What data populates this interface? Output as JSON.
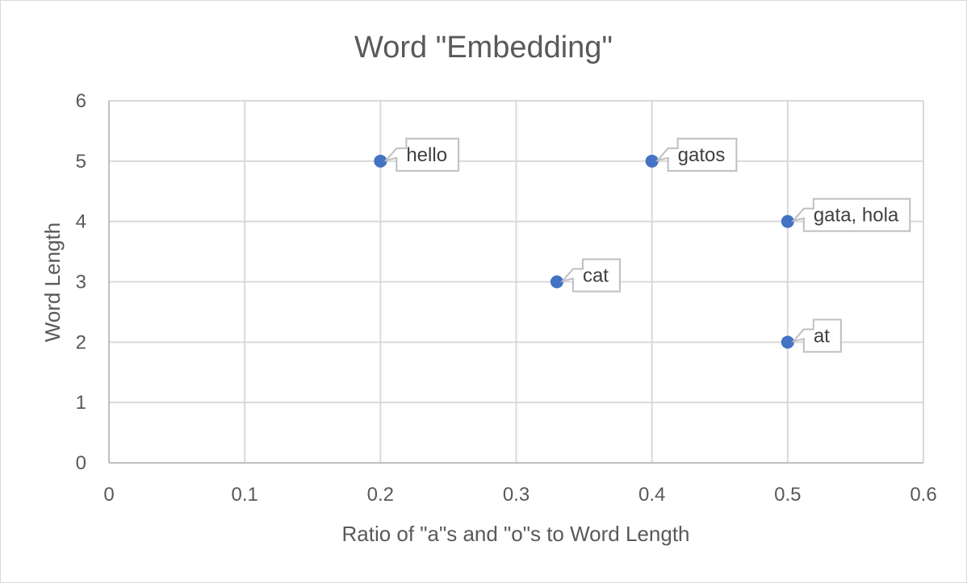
{
  "chart_data": {
    "type": "scatter",
    "title": "Word \"Embedding\"",
    "xlabel": "Ratio of \"a\"s and \"o\"s to Word Length",
    "ylabel": "Word Length",
    "xlim": [
      0,
      0.6
    ],
    "ylim": [
      0,
      6
    ],
    "x_ticks": [
      "0",
      "0.1",
      "0.2",
      "0.3",
      "0.4",
      "0.5",
      "0.6"
    ],
    "y_ticks": [
      "0",
      "1",
      "2",
      "3",
      "4",
      "5",
      "6"
    ],
    "grid": true,
    "marker_color": "#4472c4",
    "points": [
      {
        "x": 0.2,
        "y": 5,
        "label": "hello"
      },
      {
        "x": 0.4,
        "y": 5,
        "label": "gatos"
      },
      {
        "x": 0.5,
        "y": 4,
        "label": "gata, hola"
      },
      {
        "x": 0.33,
        "y": 3,
        "label": "cat"
      },
      {
        "x": 0.5,
        "y": 2,
        "label": "at"
      }
    ]
  }
}
